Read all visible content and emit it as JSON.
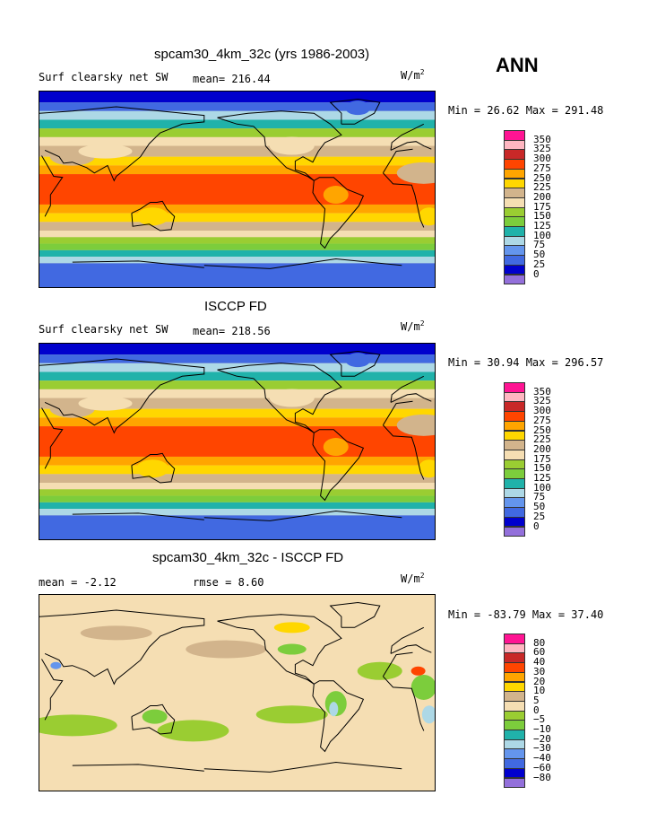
{
  "season": "ANN",
  "units_base": "W/m",
  "units_exp": "2",
  "panels": [
    {
      "title": "spcam30_4km_32c (yrs 1986-2003)",
      "left_label": "Surf clearsky net SW",
      "stat_label": "mean= 216.44",
      "minmax": "Min =  26.62 Max = 291.48",
      "palette": "abs"
    },
    {
      "title": "ISCCP FD",
      "left_label": "Surf clearsky net SW",
      "stat_label": "mean= 218.56",
      "minmax": "Min =  30.94 Max = 296.57",
      "palette": "abs"
    },
    {
      "title": "spcam30_4km_32c - ISCCP FD",
      "left_label": "mean =  -2.12",
      "stat_label": "rmse =   8.60",
      "minmax": "Min = -83.79 Max =  37.40",
      "palette": "diff"
    }
  ],
  "colorbar_abs": {
    "labels": [
      "350",
      "325",
      "300",
      "275",
      "250",
      "225",
      "200",
      "175",
      "150",
      "125",
      "100",
      "75",
      "50",
      "25",
      "0"
    ],
    "colors": [
      "#ff1493",
      "#ffb6c1",
      "#c82828",
      "#ff4500",
      "#ffa500",
      "#ffd700",
      "#d2b48c",
      "#f5deb3",
      "#9acd32",
      "#7ccd3c",
      "#20b2aa",
      "#add8e6",
      "#6495ed",
      "#4169e1",
      "#0000cd",
      "#9370db"
    ]
  },
  "colorbar_diff": {
    "labels": [
      "80",
      "60",
      "40",
      "30",
      "20",
      "10",
      "5",
      "0",
      "−5",
      "−10",
      "−20",
      "−30",
      "−40",
      "−60",
      "−80"
    ],
    "colors": [
      "#ff1493",
      "#ffb6c1",
      "#c82828",
      "#ff4500",
      "#ffa500",
      "#ffd700",
      "#d2b48c",
      "#f5deb3",
      "#9acd32",
      "#7ccd3c",
      "#20b2aa",
      "#add8e6",
      "#6495ed",
      "#4169e1",
      "#0000cd",
      "#9370db"
    ]
  }
}
